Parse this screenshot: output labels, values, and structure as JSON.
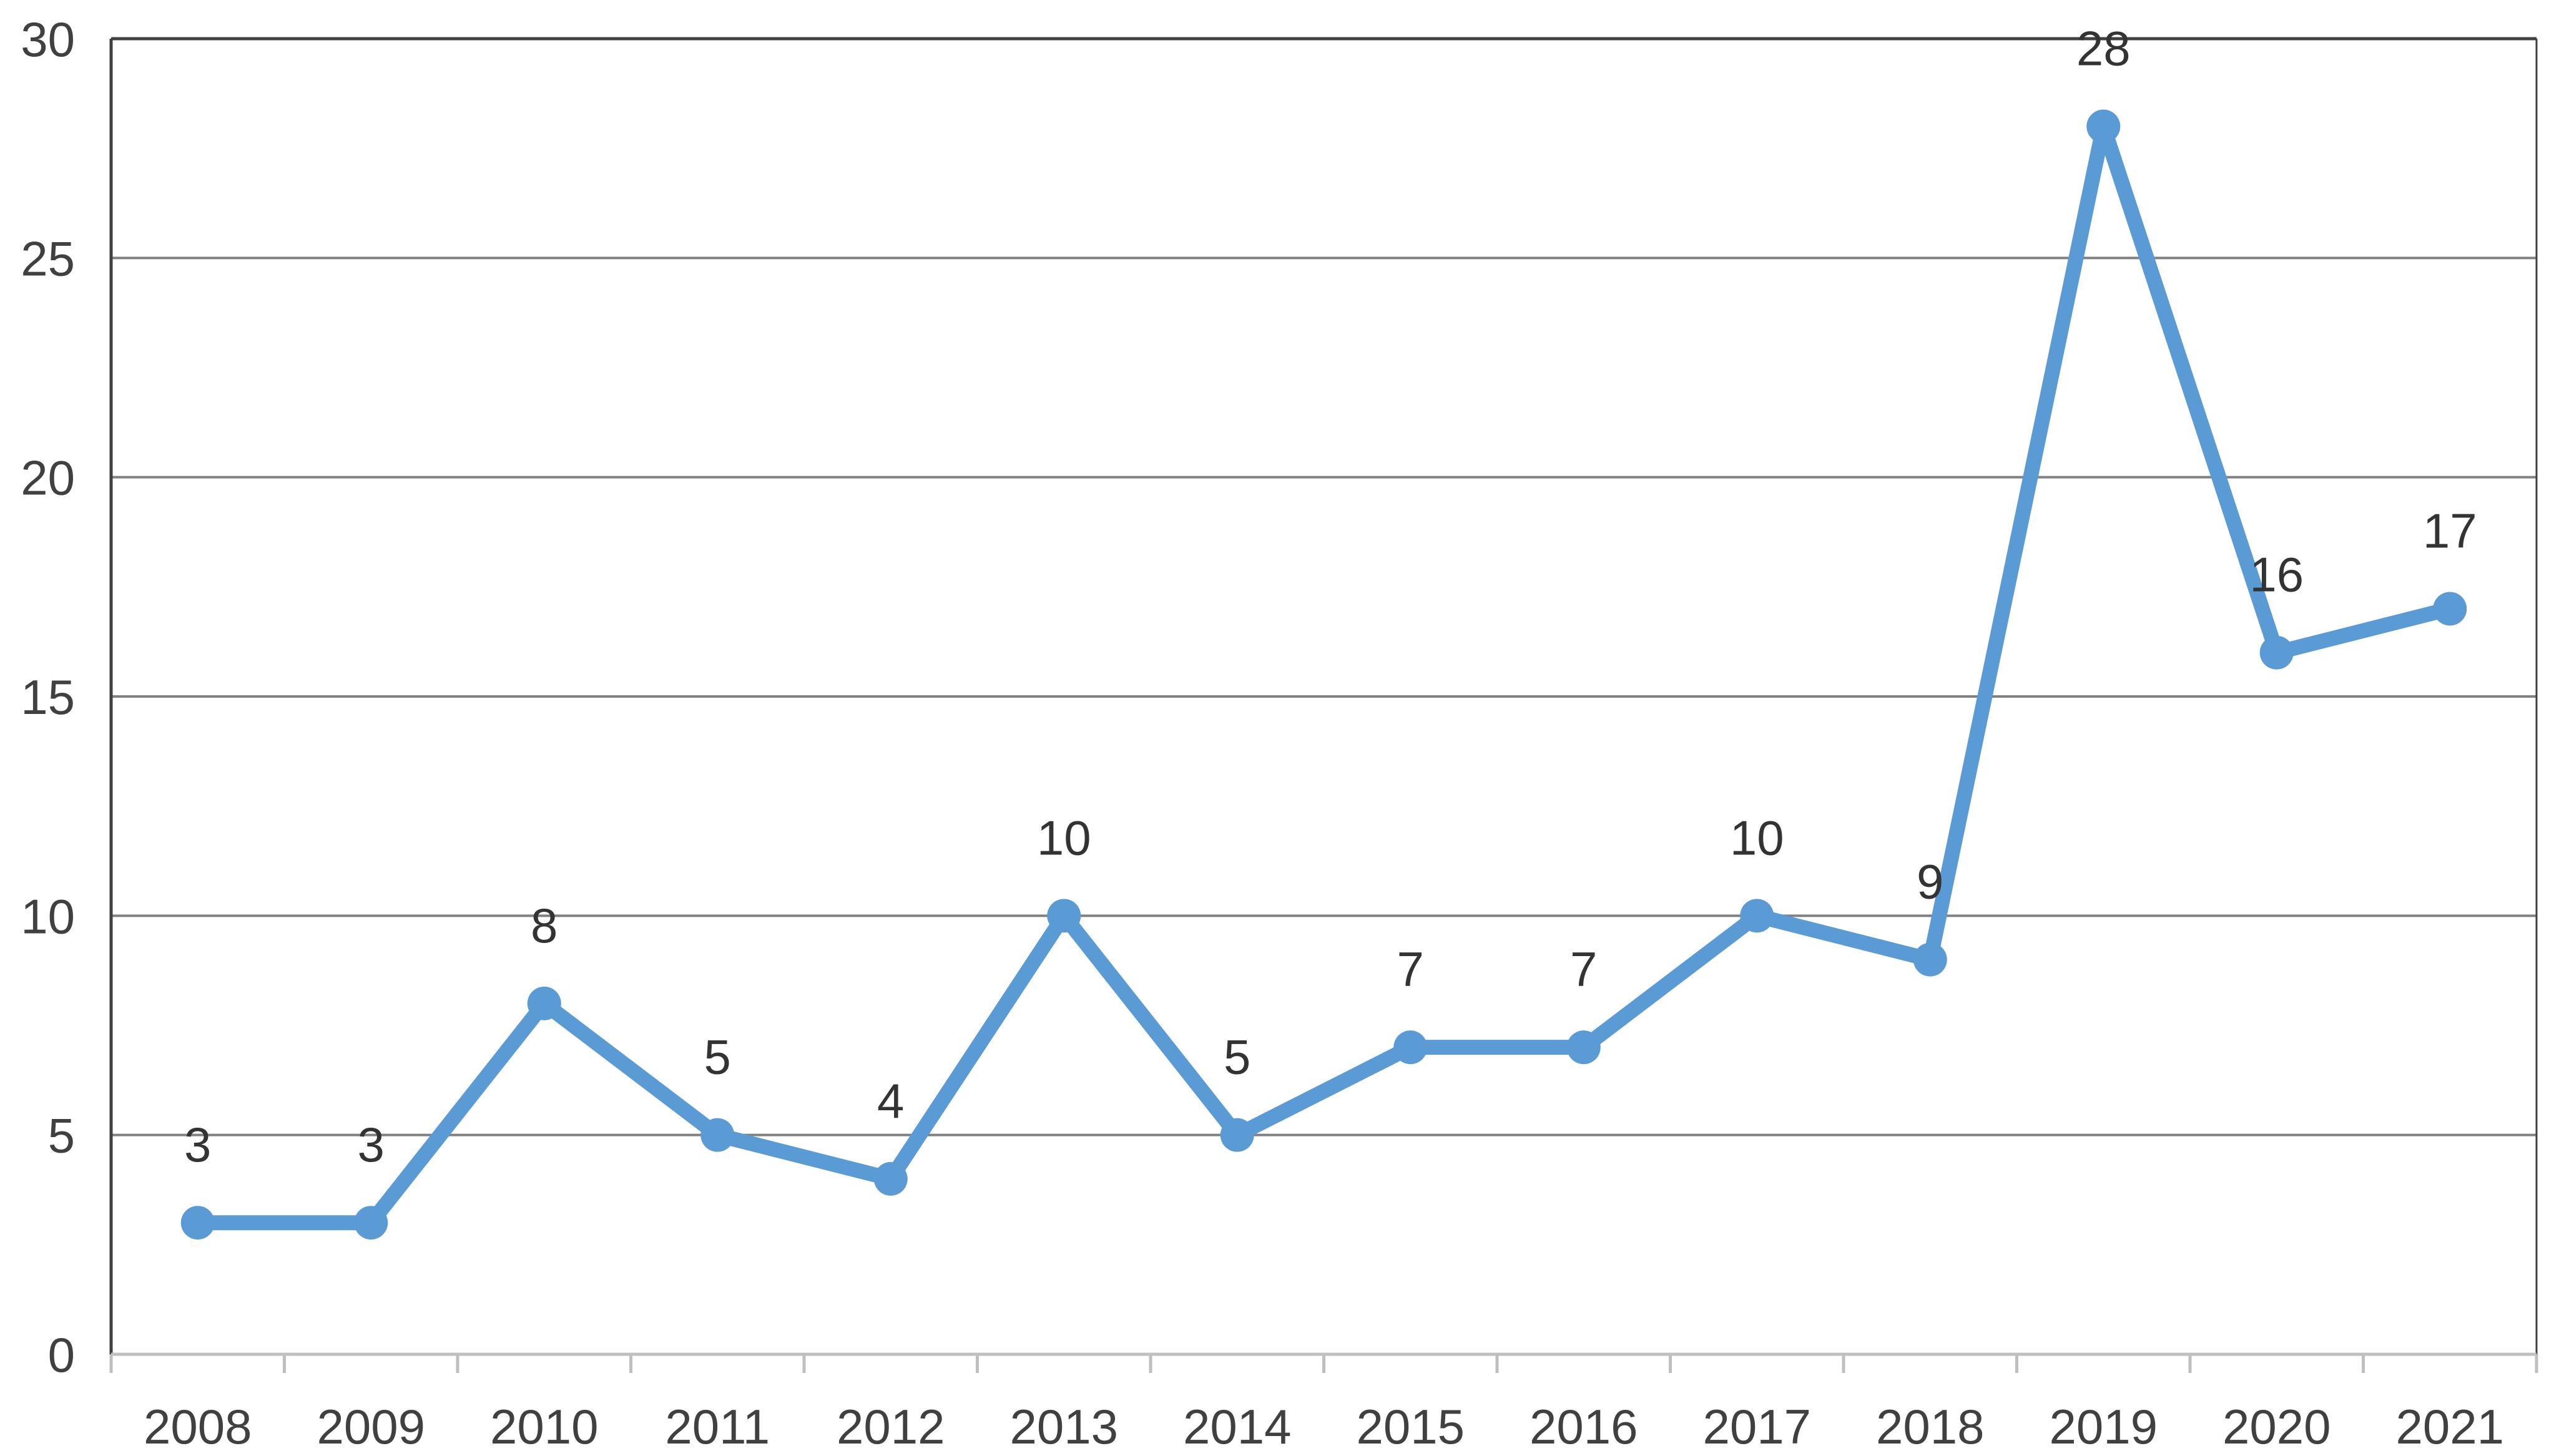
{
  "chart_data": {
    "type": "line",
    "title": "",
    "xlabel": "",
    "ylabel": "",
    "categories": [
      "2008",
      "2009",
      "2010",
      "2011",
      "2012",
      "2013",
      "2014",
      "2015",
      "2016",
      "2017",
      "2018",
      "2019",
      "2020",
      "2021"
    ],
    "series": [
      {
        "values": [
          3,
          3,
          8,
          5,
          4,
          10,
          5,
          7,
          7,
          10,
          9,
          28,
          16,
          17
        ],
        "color": "#5b9bd5",
        "data_labels": true
      }
    ],
    "ylim": [
      0,
      30
    ],
    "yticks": [
      0,
      5,
      10,
      15,
      20,
      25,
      30
    ],
    "grid": true,
    "legend": "none"
  }
}
